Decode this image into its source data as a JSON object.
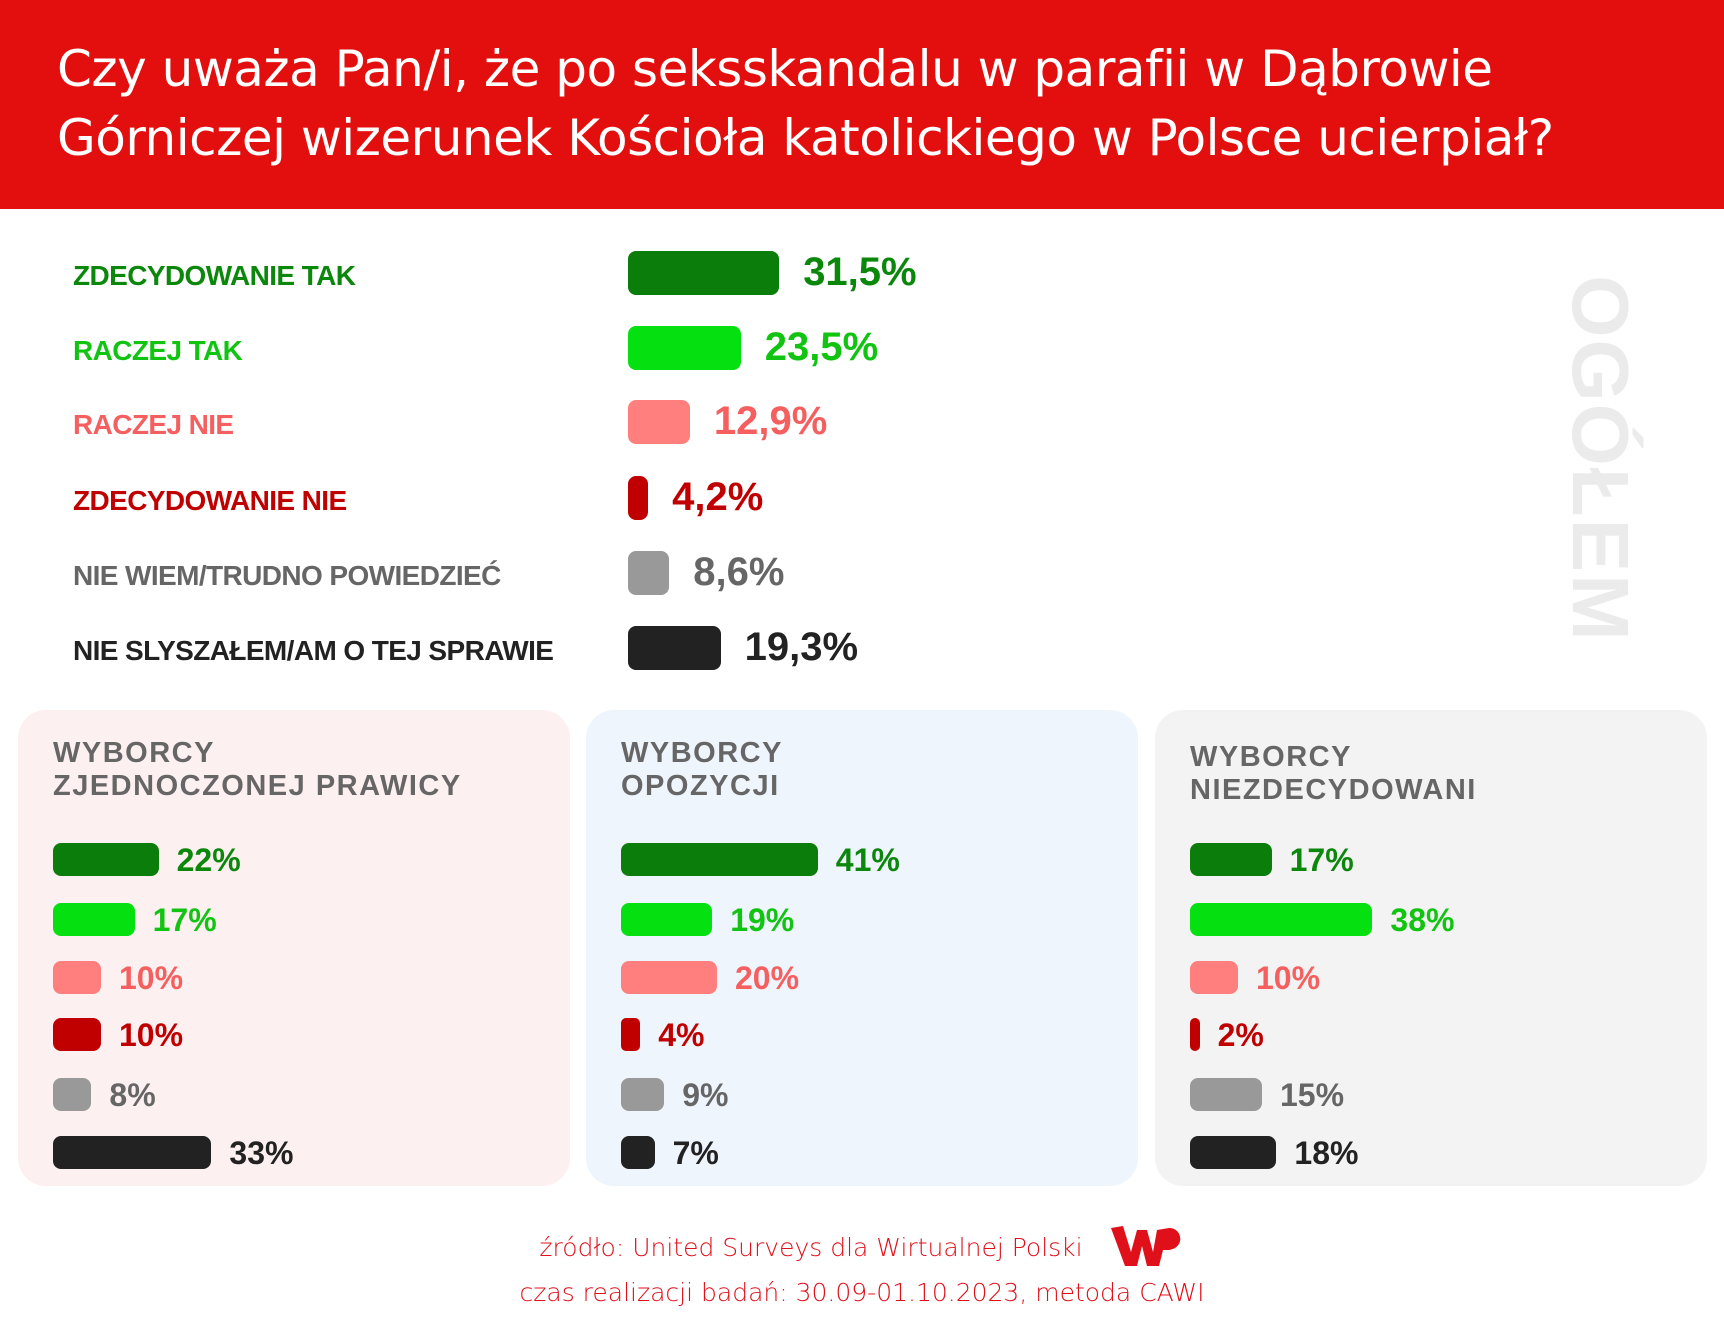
{
  "title": {
    "line1": "Czy uważa Pan/i, że po seksskandalu w parafii w Dąbrowie",
    "line2": "Górniczej wizerunek Kościoła katolickiego w Polsce ucierpiał?"
  },
  "colors": {
    "header": "#e30f0f",
    "bars": [
      "#0a7d0a",
      "#05e010",
      "#ff7f7f",
      "#c00000",
      "#999999",
      "#222222"
    ],
    "labels": [
      "#0b870b",
      "#12c412",
      "#f55f5f",
      "#c00000",
      "#666666",
      "#222222"
    ]
  },
  "chart_data": {
    "type": "bar",
    "title": "Czy uważa Pan/i, że po seksskandalu w parafii w Dąbrowie Górniczej wizerunek Kościoła katolickiego w Polsce ucierpiał?",
    "categories": [
      "ZDECYDOWANIE TAK",
      "RACZEJ TAK",
      "RACZEJ NIE",
      "ZDECYDOWANIE NIE",
      "NIE WIEM/TRUDNO POWIEDZIEĆ",
      "NIE SLYSZAŁEM/AM O TEJ SPRAWIE"
    ],
    "overall": {
      "name": "OGÓŁEM",
      "values": [
        31.5,
        23.5,
        12.9,
        4.2,
        8.6,
        19.3
      ],
      "labels": [
        "31,5%",
        "23,5%",
        "12,9%",
        "4,2%",
        "8,6%",
        "19,3%"
      ]
    },
    "series": [
      {
        "name": "WYBORCY ZJEDNOCZONEJ PRAWICY",
        "title_lines": [
          "WYBORCY",
          "ZJEDNOCZONEJ PRAWICY"
        ],
        "bg": "#fdf0f0",
        "values": [
          22,
          17,
          10,
          10,
          8,
          33
        ],
        "labels": [
          "22%",
          "17%",
          "10%",
          "10%",
          "8%",
          "33%"
        ]
      },
      {
        "name": "WYBORCY OPOZYCJI",
        "title_lines": [
          "WYBORCY",
          "OPOZYCJI"
        ],
        "bg": "#eef5fd",
        "values": [
          41,
          19,
          20,
          4,
          9,
          7
        ],
        "labels": [
          "41%",
          "19%",
          "20%",
          "4%",
          "9%",
          "7%"
        ]
      },
      {
        "name": "WYBORCY NIEZDECYDOWANI",
        "title_lines": [
          "WYBORCY",
          "NIEZDECYDOWANI"
        ],
        "bg": "#f3f3f3",
        "values": [
          17,
          38,
          10,
          2,
          15,
          18
        ],
        "labels": [
          "17%",
          "38%",
          "10%",
          "2%",
          "15%",
          "18%"
        ]
      }
    ],
    "xlabel": "",
    "ylabel": "",
    "unit": "%"
  },
  "footer": {
    "source": "źródło: United Surveys dla Wirtualnej Polski",
    "logo_text": "WP",
    "method": "czas realizacji badań: 30.09-01.10.2023, metoda CAWI"
  }
}
